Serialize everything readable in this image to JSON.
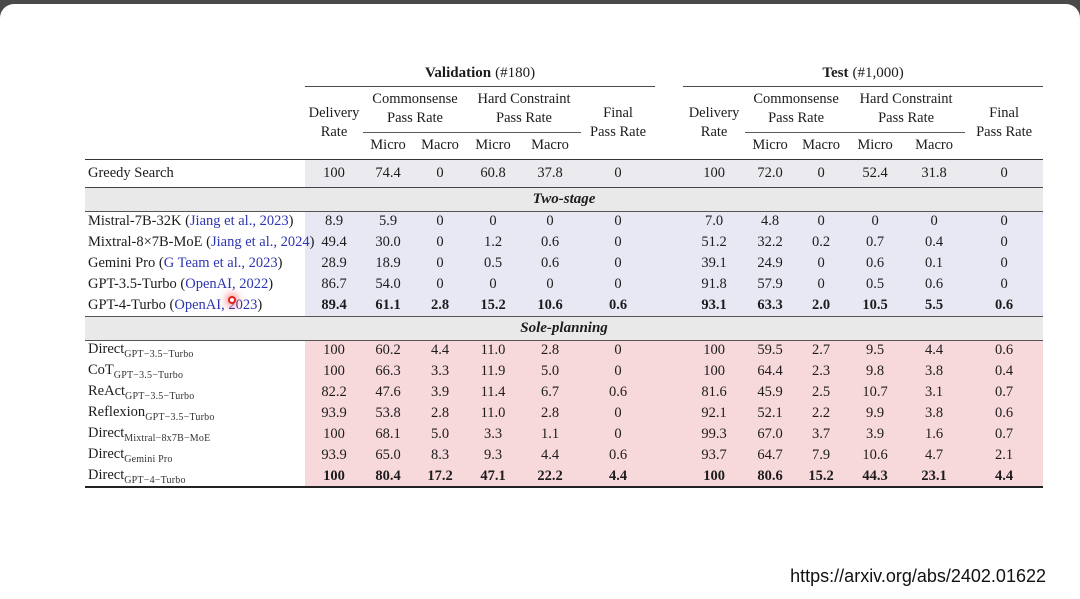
{
  "colors": {
    "citation_link": "#2c35b2",
    "two_stage_row_bg": "#e8e8f5",
    "sole_planning_row_bg": "#f8d9db",
    "baseline_row_bg": "#eaeaef",
    "section_band_bg": "#e9e9e9",
    "top_edge_bar": "#4a4a4a",
    "laser_dot": "#e0211c"
  },
  "page": {
    "source_url": "https://arxiv.org/abs/2402.01622"
  },
  "table": {
    "meta": {
      "open_paren": "(",
      "close_paren": ")"
    },
    "header": {
      "validation": {
        "name": "Validation",
        "count": "(#180)"
      },
      "test": {
        "name": "Test",
        "count": "(#1,000)"
      },
      "delivery": {
        "line1": "Delivery",
        "line2": "Rate"
      },
      "commonsense": {
        "line1": "Commonsense",
        "line2": "Pass Rate"
      },
      "hard_constraint": {
        "line1": "Hard Constraint",
        "line2": "Pass Rate"
      },
      "final": {
        "line1": "Final",
        "line2": "Pass Rate"
      },
      "micro": "Micro",
      "macro": "Macro"
    },
    "baseline_row": {
      "label": "Greedy Search",
      "values": [
        "100",
        "74.4",
        "0",
        "60.8",
        "37.8",
        "0",
        "100",
        "72.0",
        "0",
        "52.4",
        "31.8",
        "0"
      ]
    },
    "sections": [
      {
        "title": "Two-stage",
        "rows": [
          {
            "label_main": "Mistral-7B-32K",
            "cite": "Jiang et al., 2023",
            "bold": false,
            "values": [
              "8.9",
              "5.9",
              "0",
              "0",
              "0",
              "0",
              "7.0",
              "4.8",
              "0",
              "0",
              "0",
              "0"
            ]
          },
          {
            "label_main": "Mixtral-8×7B-MoE",
            "cite": "Jiang et al., 2024",
            "bold": false,
            "values": [
              "49.4",
              "30.0",
              "0",
              "1.2",
              "0.6",
              "0",
              "51.2",
              "32.2",
              "0.2",
              "0.7",
              "0.4",
              "0"
            ]
          },
          {
            "label_main": "Gemini Pro",
            "cite": "G Team et al., 2023",
            "bold": false,
            "values": [
              "28.9",
              "18.9",
              "0",
              "0.5",
              "0.6",
              "0",
              "39.1",
              "24.9",
              "0",
              "0.6",
              "0.1",
              "0"
            ]
          },
          {
            "label_main": "GPT-3.5-Turbo",
            "cite": "OpenAI, 2022",
            "bold": false,
            "values": [
              "86.7",
              "54.0",
              "0",
              "0",
              "0",
              "0",
              "91.8",
              "57.9",
              "0",
              "0.5",
              "0.6",
              "0"
            ]
          },
          {
            "label_main": "GPT-4-Turbo",
            "cite": "OpenAI, 2023",
            "bold": true,
            "values": [
              "89.4",
              "61.1",
              "2.8",
              "15.2",
              "10.6",
              "0.6",
              "93.1",
              "63.3",
              "2.0",
              "10.5",
              "5.5",
              "0.6"
            ]
          }
        ]
      },
      {
        "title": "Sole-planning",
        "rows": [
          {
            "label_main": "Direct",
            "sub": "GPT−3.5−Turbo",
            "bold": false,
            "values": [
              "100",
              "60.2",
              "4.4",
              "11.0",
              "2.8",
              "0",
              "100",
              "59.5",
              "2.7",
              "9.5",
              "4.4",
              "0.6"
            ]
          },
          {
            "label_main": "CoT",
            "sub": "GPT−3.5−Turbo",
            "bold": false,
            "values": [
              "100",
              "66.3",
              "3.3",
              "11.9",
              "5.0",
              "0",
              "100",
              "64.4",
              "2.3",
              "9.8",
              "3.8",
              "0.4"
            ]
          },
          {
            "label_main": "ReAct",
            "sub": "GPT−3.5−Turbo",
            "bold": false,
            "values": [
              "82.2",
              "47.6",
              "3.9",
              "11.4",
              "6.7",
              "0.6",
              "81.6",
              "45.9",
              "2.5",
              "10.7",
              "3.1",
              "0.7"
            ]
          },
          {
            "label_main": "Reflexion",
            "sub": "GPT−3.5−Turbo",
            "bold": false,
            "values": [
              "93.9",
              "53.8",
              "2.8",
              "11.0",
              "2.8",
              "0",
              "92.1",
              "52.1",
              "2.2",
              "9.9",
              "3.8",
              "0.6"
            ]
          },
          {
            "label_main": "Direct",
            "sub": "Mixtral−8x7B−MoE",
            "bold": false,
            "values": [
              "100",
              "68.1",
              "5.0",
              "3.3",
              "1.1",
              "0",
              "99.3",
              "67.0",
              "3.7",
              "3.9",
              "1.6",
              "0.7"
            ]
          },
          {
            "label_main": "Direct",
            "sub": "Gemini Pro",
            "bold": false,
            "values": [
              "93.9",
              "65.0",
              "8.3",
              "9.3",
              "4.4",
              "0.6",
              "93.7",
              "64.7",
              "7.9",
              "10.6",
              "4.7",
              "2.1"
            ]
          },
          {
            "label_main": "Direct",
            "sub": "GPT−4−Turbo",
            "bold": true,
            "values": [
              "100",
              "80.4",
              "17.2",
              "47.1",
              "22.2",
              "4.4",
              "100",
              "80.6",
              "15.2",
              "44.3",
              "23.1",
              "4.4"
            ]
          }
        ]
      }
    ]
  }
}
